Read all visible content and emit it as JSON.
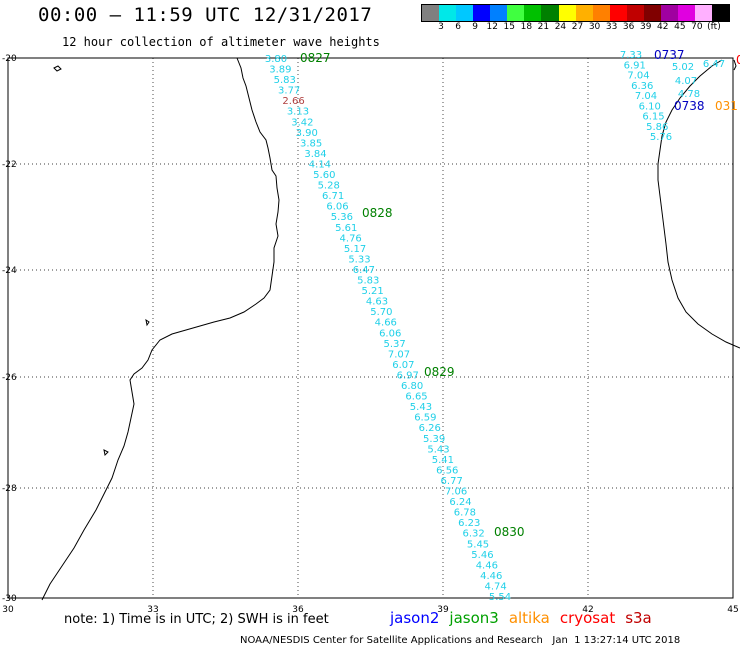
{
  "title": "00:00 – 11:59 UTC 12/31/2017",
  "subtitle": "12 hour collection of altimeter wave heights",
  "color_scale": {
    "colors": [
      "#808080",
      "#00e8e8",
      "#00c8ff",
      "#0000ff",
      "#0080ff",
      "#40ff40",
      "#00c000",
      "#008000",
      "#ffff00",
      "#ffb000",
      "#ff8000",
      "#ff0000",
      "#c00000",
      "#800000",
      "#a000a0",
      "#e000e0",
      "#ffb0ff",
      "#000000"
    ],
    "labels": [
      "3",
      "6",
      "9",
      "12",
      "15",
      "18",
      "21",
      "24",
      "27",
      "30",
      "33",
      "36",
      "39",
      "42",
      "45",
      "70",
      "(ft)"
    ]
  },
  "axes": {
    "lon_labels": [
      "30",
      "33",
      "36",
      "39",
      "42",
      "45"
    ],
    "lat_labels": [
      "-20",
      "-22",
      "-24",
      "-26",
      "-28",
      "-30"
    ]
  },
  "tracks": {
    "main": {
      "color": "#20d0e8",
      "values": [
        "3.80",
        "3.89",
        "5.83",
        "3.77",
        "2.66",
        "3.13",
        "3.42",
        "3.90",
        "3.85",
        "3.84",
        "4.14",
        "5.60",
        "5.28",
        "6.71",
        "6.06",
        "5.36",
        "5.61",
        "4.76",
        "5.17",
        "5.33",
        "6.47",
        "5.83",
        "5.21",
        "4.63",
        "5.70",
        "4.66",
        "6.06",
        "5.37",
        "7.07",
        "6.07",
        "6.97",
        "6.80",
        "6.65",
        "5.43",
        "6.59",
        "6.26",
        "5.39",
        "5.43",
        "5.41",
        "6.56",
        "6.77",
        "7.06",
        "6.24",
        "6.78",
        "6.23",
        "6.32",
        "5.45",
        "5.46",
        "4.46",
        "4.46",
        "4.74",
        "5.54"
      ],
      "highlight_index": 4,
      "highlight_color": "#b04040"
    },
    "east": {
      "color": "#20d0e8",
      "values": [
        "7.33",
        "6.91",
        "7.04",
        "6.36",
        "7.04",
        "6.10",
        "6.15",
        "5.86",
        "5.76"
      ]
    },
    "east_small": {
      "color": "#20d0e8",
      "values": [
        "5.02",
        "4.07",
        "4.78",
        "6.47"
      ]
    }
  },
  "time_labels": [
    {
      "text": "0827",
      "color": "#008000"
    },
    {
      "text": "0828",
      "color": "#008000"
    },
    {
      "text": "0829",
      "color": "#008000"
    },
    {
      "text": "0830",
      "color": "#008000"
    },
    {
      "text": "0737",
      "color": "#0000c0"
    },
    {
      "text": "0738",
      "color": "#0000c0"
    },
    {
      "text": "031",
      "color": "#ff9000"
    },
    {
      "text": "0",
      "color": "#ff0000"
    }
  ],
  "note": "note: 1) Time is in UTC; 2) SWH is in feet",
  "legend": [
    {
      "name": "jason2",
      "color": "#0000ff"
    },
    {
      "name": "jason3",
      "color": "#00a000"
    },
    {
      "name": "altika",
      "color": "#ff9000"
    },
    {
      "name": "cryosat",
      "color": "#ff0000"
    },
    {
      "name": "s3a",
      "color": "#c00000"
    }
  ],
  "footer": "NOAA/NESDIS Center for Satellite Applications and Research   Jan  1 13:27:14 UTC 2018"
}
